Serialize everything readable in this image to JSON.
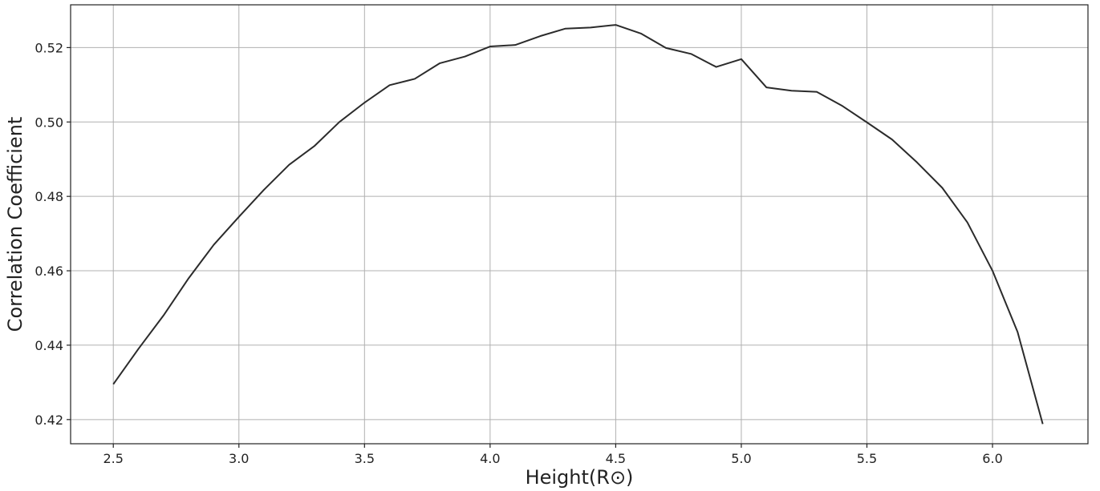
{
  "chart_data": {
    "type": "line",
    "title": "",
    "xlabel": "Height(R⊙)",
    "ylabel": "Correlation Coefficient",
    "xlim": [
      2.33,
      6.38
    ],
    "ylim": [
      0.4135,
      0.5315
    ],
    "grid": true,
    "x_ticks": [
      2.5,
      3.0,
      3.5,
      4.0,
      4.5,
      5.0,
      5.5,
      6.0
    ],
    "x_tick_labels": [
      "2.5",
      "3.0",
      "3.5",
      "4.0",
      "4.5",
      "5.0",
      "5.5",
      "6.0"
    ],
    "y_ticks": [
      0.42,
      0.44,
      0.46,
      0.48,
      0.5,
      0.52
    ],
    "y_tick_labels": [
      "0.42",
      "0.44",
      "0.46",
      "0.48",
      "0.50",
      "0.52"
    ],
    "colors": {
      "line": "#2b2b2b",
      "grid": "#b0b0b0",
      "axis": "#222222"
    },
    "series": [
      {
        "x": [
          2.5,
          2.6,
          2.7,
          2.8,
          2.9,
          3.0,
          3.1,
          3.2,
          3.3,
          3.4,
          3.5,
          3.6,
          3.7,
          3.8,
          3.9,
          4.0,
          4.1,
          4.2,
          4.3,
          4.4,
          4.5,
          4.6,
          4.7,
          4.8,
          4.9,
          5.0,
          5.1,
          5.2,
          5.3,
          5.4,
          5.5,
          5.6,
          5.7,
          5.8,
          5.9,
          6.0,
          6.1,
          6.2
        ],
        "values": [
          0.4295,
          0.439,
          0.448,
          0.458,
          0.467,
          0.4745,
          0.4818,
          0.4885,
          0.4935,
          0.5,
          0.5052,
          0.5099,
          0.5116,
          0.5158,
          0.5176,
          0.5203,
          0.5207,
          0.5231,
          0.5251,
          0.5254,
          0.5261,
          0.5238,
          0.5199,
          0.5183,
          0.5148,
          0.5169,
          0.5093,
          0.5084,
          0.5081,
          0.5044,
          0.4999,
          0.4953,
          0.4891,
          0.4823,
          0.473,
          0.46,
          0.4435,
          0.4188
        ]
      }
    ]
  }
}
